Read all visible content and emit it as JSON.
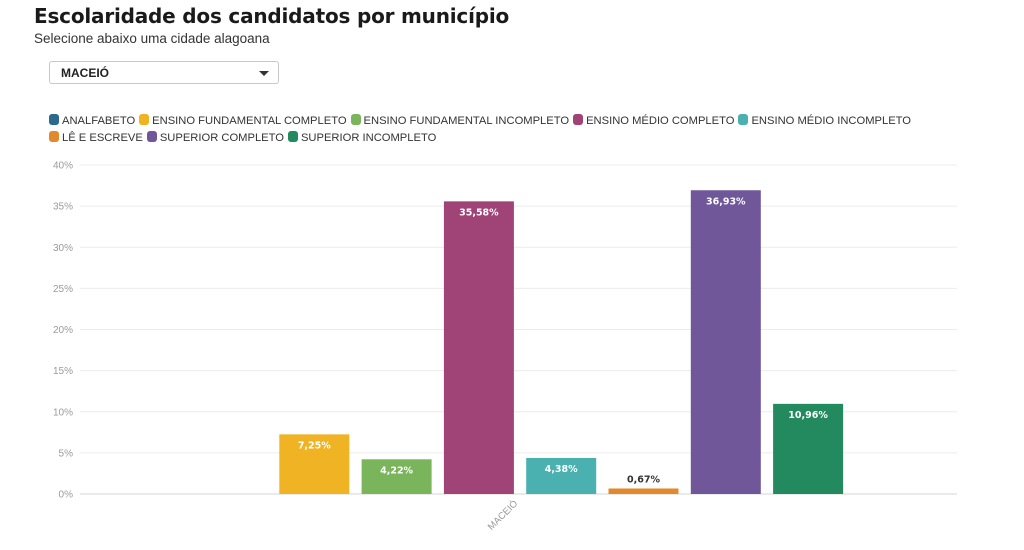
{
  "header": {
    "title": "Escolaridade dos candidatos por município",
    "subtitle": "Selecione abaixo uma cidade alagoana"
  },
  "dropdown": {
    "selected": "MACEIÓ"
  },
  "chart_data": {
    "type": "bar",
    "title": "Escolaridade dos candidatos por município",
    "categories": [
      "MACEIÓ"
    ],
    "ylim": [
      0,
      40
    ],
    "yticks": [
      0,
      5,
      10,
      15,
      20,
      25,
      30,
      35,
      40
    ],
    "ytick_labels": [
      "0%",
      "5%",
      "10%",
      "15%",
      "20%",
      "25%",
      "30%",
      "35%",
      "40%"
    ],
    "grid": true,
    "legend_position": "top",
    "series": [
      {
        "name": "ANALFABETO",
        "color": "#2a6a8c",
        "values": [
          0
        ],
        "label": ""
      },
      {
        "name": "ENSINO FUNDAMENTAL COMPLETO",
        "color": "#f0b323",
        "values": [
          7.25
        ],
        "label": "7,25%"
      },
      {
        "name": "ENSINO FUNDAMENTAL INCOMPLETO",
        "color": "#7ab55c",
        "values": [
          4.22
        ],
        "label": "4,22%"
      },
      {
        "name": "ENSINO MÉDIO COMPLETO",
        "color": "#a04377",
        "values": [
          35.58
        ],
        "label": "35,58%"
      },
      {
        "name": "ENSINO MÉDIO INCOMPLETO",
        "color": "#4ab0b0",
        "values": [
          4.38
        ],
        "label": "4,38%"
      },
      {
        "name": "LÊ E ESCREVE",
        "color": "#e2892b",
        "values": [
          0.67
        ],
        "label": "0,67%"
      },
      {
        "name": "SUPERIOR COMPLETO",
        "color": "#6f5799",
        "values": [
          36.93
        ],
        "label": "36,93%"
      },
      {
        "name": "SUPERIOR INCOMPLETO",
        "color": "#228a5e",
        "values": [
          10.96
        ],
        "label": "10,96%"
      }
    ]
  }
}
